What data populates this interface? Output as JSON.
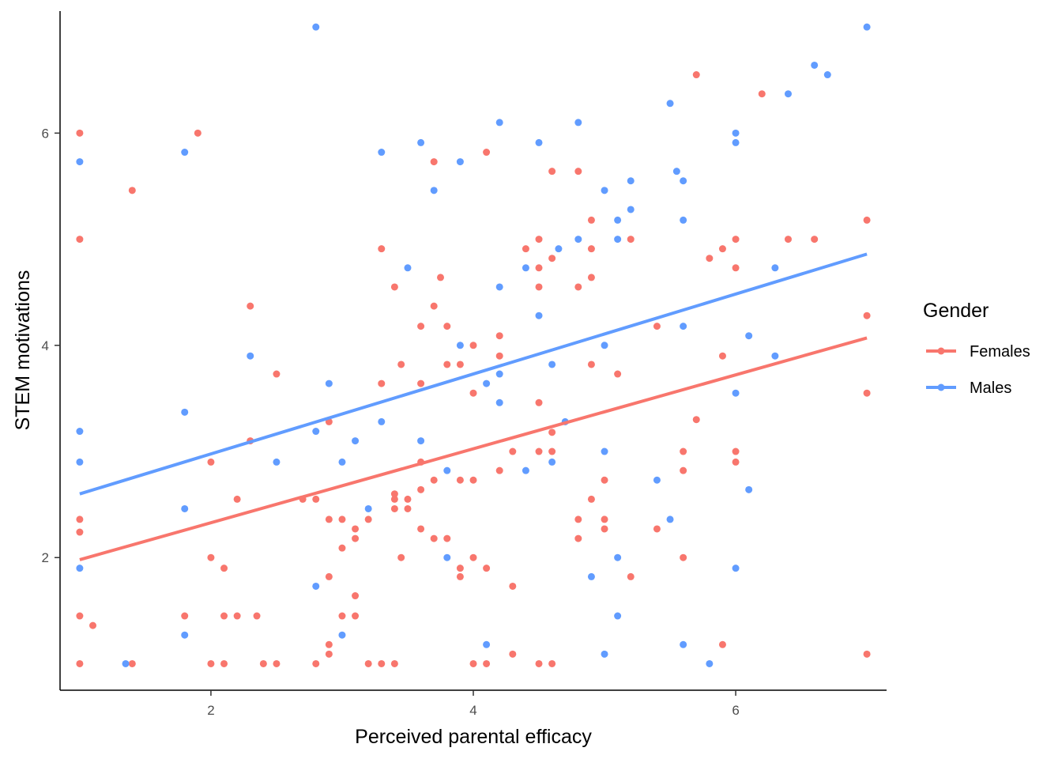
{
  "chart_data": {
    "type": "scatter",
    "xlabel": "Perceived parental efficacy",
    "ylabel": "STEM motivations",
    "xlim": [
      0.85,
      7.15
    ],
    "ylim": [
      0.75,
      7.15
    ],
    "x_ticks": [
      2,
      4,
      6
    ],
    "y_ticks": [
      2,
      4,
      6
    ],
    "grid": false,
    "legend": {
      "title": "Gender",
      "placement": "right"
    },
    "series": [
      {
        "name": "Females",
        "color": "#F8766D",
        "trend": {
          "x": [
            1,
            7
          ],
          "y": [
            1.98,
            4.07
          ]
        },
        "points": [
          [
            1,
            6
          ],
          [
            1,
            5
          ],
          [
            1,
            2.36
          ],
          [
            1,
            2.24
          ],
          [
            1,
            1.45
          ],
          [
            1,
            1
          ],
          [
            1.1,
            1.36
          ],
          [
            1.4,
            5.46
          ],
          [
            1.4,
            1
          ],
          [
            1.8,
            1.45
          ],
          [
            1.9,
            6
          ],
          [
            2,
            2.9
          ],
          [
            2,
            2
          ],
          [
            2,
            1
          ],
          [
            2.1,
            1.9
          ],
          [
            2.1,
            1.45
          ],
          [
            2.1,
            1
          ],
          [
            2.2,
            2.55
          ],
          [
            2.2,
            1.45
          ],
          [
            2.3,
            4.37
          ],
          [
            2.3,
            3.1
          ],
          [
            2.35,
            1.45
          ],
          [
            2.4,
            1
          ],
          [
            2.5,
            3.73
          ],
          [
            2.5,
            1
          ],
          [
            2.7,
            2.55
          ],
          [
            2.8,
            2.55
          ],
          [
            2.8,
            1
          ],
          [
            2.9,
            3.28
          ],
          [
            2.9,
            2.36
          ],
          [
            2.9,
            1.82
          ],
          [
            2.9,
            1.18
          ],
          [
            2.9,
            1.09
          ],
          [
            3,
            2.36
          ],
          [
            3,
            2.09
          ],
          [
            3,
            1.45
          ],
          [
            3.1,
            2.27
          ],
          [
            3.1,
            2.18
          ],
          [
            3.1,
            1.64
          ],
          [
            3.1,
            1.45
          ],
          [
            3.2,
            2.36
          ],
          [
            3.2,
            1
          ],
          [
            3.3,
            4.91
          ],
          [
            3.3,
            3.64
          ],
          [
            3.3,
            1
          ],
          [
            3.4,
            4.55
          ],
          [
            3.4,
            2.6
          ],
          [
            3.4,
            2.55
          ],
          [
            3.4,
            2.46
          ],
          [
            3.4,
            1
          ],
          [
            3.45,
            3.82
          ],
          [
            3.45,
            2
          ],
          [
            3.5,
            2.55
          ],
          [
            3.5,
            2.46
          ],
          [
            3.6,
            4.18
          ],
          [
            3.6,
            3.64
          ],
          [
            3.6,
            2.9
          ],
          [
            3.6,
            2.64
          ],
          [
            3.6,
            2.27
          ],
          [
            3.7,
            5.73
          ],
          [
            3.7,
            4.37
          ],
          [
            3.7,
            2.73
          ],
          [
            3.7,
            2.18
          ],
          [
            3.75,
            4.64
          ],
          [
            3.8,
            4.18
          ],
          [
            3.8,
            3.82
          ],
          [
            3.8,
            2.18
          ],
          [
            3.9,
            3.82
          ],
          [
            3.9,
            2.73
          ],
          [
            3.9,
            1.9
          ],
          [
            3.9,
            1.82
          ],
          [
            4,
            4
          ],
          [
            4,
            3.55
          ],
          [
            4,
            2.73
          ],
          [
            4,
            2
          ],
          [
            4,
            1
          ],
          [
            4.1,
            5.82
          ],
          [
            4.1,
            1.9
          ],
          [
            4.1,
            1
          ],
          [
            4.2,
            4.09
          ],
          [
            4.2,
            3.9
          ],
          [
            4.2,
            2.82
          ],
          [
            4.3,
            3
          ],
          [
            4.3,
            1.73
          ],
          [
            4.3,
            1.09
          ],
          [
            4.4,
            4.91
          ],
          [
            4.5,
            5
          ],
          [
            4.5,
            4.73
          ],
          [
            4.5,
            4.55
          ],
          [
            4.5,
            3.46
          ],
          [
            4.5,
            3
          ],
          [
            4.5,
            1
          ],
          [
            4.6,
            5.64
          ],
          [
            4.6,
            4.82
          ],
          [
            4.6,
            3.18
          ],
          [
            4.6,
            3
          ],
          [
            4.6,
            1
          ],
          [
            4.8,
            5.64
          ],
          [
            4.8,
            4.55
          ],
          [
            4.8,
            2.36
          ],
          [
            4.8,
            2.18
          ],
          [
            4.9,
            5.18
          ],
          [
            4.9,
            4.91
          ],
          [
            4.9,
            4.64
          ],
          [
            4.9,
            3.82
          ],
          [
            4.9,
            2.55
          ],
          [
            5,
            2.73
          ],
          [
            5,
            2.36
          ],
          [
            5,
            2.27
          ],
          [
            5.1,
            3.73
          ],
          [
            5.2,
            5
          ],
          [
            5.2,
            1.82
          ],
          [
            5.4,
            4.18
          ],
          [
            5.4,
            2.27
          ],
          [
            5.6,
            3
          ],
          [
            5.6,
            2.82
          ],
          [
            5.6,
            2
          ],
          [
            5.7,
            6.55
          ],
          [
            5.7,
            3.3
          ],
          [
            5.8,
            4.82
          ],
          [
            5.9,
            4.91
          ],
          [
            5.9,
            3.9
          ],
          [
            5.9,
            1.18
          ],
          [
            6,
            5
          ],
          [
            6,
            4.73
          ],
          [
            6,
            3
          ],
          [
            6,
            2.9
          ],
          [
            6.2,
            6.37
          ],
          [
            6.4,
            5
          ],
          [
            6.6,
            5
          ],
          [
            7,
            5.18
          ],
          [
            7,
            4.28
          ],
          [
            7,
            3.55
          ],
          [
            7,
            1.09
          ]
        ]
      },
      {
        "name": "Males",
        "color": "#619CFF",
        "trend": {
          "x": [
            1,
            7
          ],
          "y": [
            2.6,
            4.86
          ]
        },
        "points": [
          [
            1,
            5.73
          ],
          [
            1,
            3.19
          ],
          [
            1,
            2.9
          ],
          [
            1,
            1.9
          ],
          [
            1.35,
            1
          ],
          [
            1.8,
            5.82
          ],
          [
            1.8,
            3.37
          ],
          [
            1.8,
            2.46
          ],
          [
            1.8,
            1.27
          ],
          [
            2.3,
            3.9
          ],
          [
            2.5,
            2.9
          ],
          [
            2.8,
            7
          ],
          [
            2.8,
            3.19
          ],
          [
            2.8,
            1.73
          ],
          [
            2.9,
            3.64
          ],
          [
            3,
            2.9
          ],
          [
            3,
            1.27
          ],
          [
            3.1,
            3.1
          ],
          [
            3.2,
            2.46
          ],
          [
            3.3,
            5.82
          ],
          [
            3.3,
            3.28
          ],
          [
            3.5,
            4.73
          ],
          [
            3.6,
            5.91
          ],
          [
            3.6,
            3.1
          ],
          [
            3.7,
            5.46
          ],
          [
            3.8,
            2.82
          ],
          [
            3.8,
            2
          ],
          [
            3.9,
            5.73
          ],
          [
            3.9,
            4
          ],
          [
            4.1,
            3.64
          ],
          [
            4.1,
            1.18
          ],
          [
            4.2,
            6.1
          ],
          [
            4.2,
            4.55
          ],
          [
            4.2,
            3.73
          ],
          [
            4.2,
            3.46
          ],
          [
            4.4,
            4.73
          ],
          [
            4.4,
            2.82
          ],
          [
            4.5,
            5.91
          ],
          [
            4.5,
            4.28
          ],
          [
            4.6,
            3.82
          ],
          [
            4.6,
            2.9
          ],
          [
            4.65,
            4.91
          ],
          [
            4.7,
            3.28
          ],
          [
            4.8,
            6.1
          ],
          [
            4.8,
            5
          ],
          [
            5,
            5.46
          ],
          [
            5,
            4
          ],
          [
            5,
            3
          ],
          [
            5,
            1.09
          ],
          [
            4.9,
            1.82
          ],
          [
            5.1,
            5.18
          ],
          [
            5.1,
            5
          ],
          [
            5.1,
            2
          ],
          [
            5.1,
            1.45
          ],
          [
            5.2,
            5.55
          ],
          [
            5.2,
            5.28
          ],
          [
            5.4,
            2.73
          ],
          [
            5.5,
            6.28
          ],
          [
            5.5,
            2.36
          ],
          [
            5.55,
            5.64
          ],
          [
            5.6,
            5.55
          ],
          [
            5.6,
            5.18
          ],
          [
            5.6,
            4.18
          ],
          [
            5.6,
            1.18
          ],
          [
            5.8,
            1
          ],
          [
            6,
            6
          ],
          [
            6,
            5.91
          ],
          [
            6,
            3.55
          ],
          [
            6,
            1.9
          ],
          [
            6.1,
            4.09
          ],
          [
            6.1,
            2.64
          ],
          [
            6.3,
            3.9
          ],
          [
            6.3,
            4.73
          ],
          [
            6.4,
            6.37
          ],
          [
            6.6,
            6.64
          ],
          [
            6.7,
            6.55
          ],
          [
            7,
            7
          ]
        ]
      }
    ]
  }
}
